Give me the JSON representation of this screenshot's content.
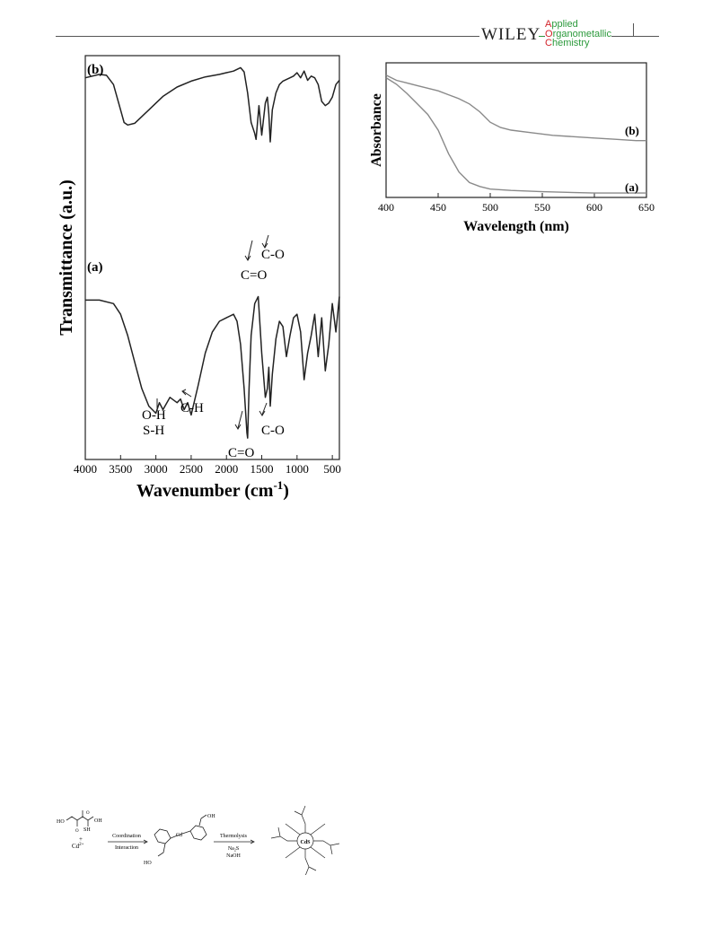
{
  "header": {
    "publisher": "WILEY",
    "journal_lines": [
      {
        "cap": "A",
        "rest": "pplied"
      },
      {
        "cap": "O",
        "rest": "rganometallic"
      },
      {
        "cap": "C",
        "rest": "hemistry"
      }
    ],
    "colors": {
      "journal_green": "#2c9a3c",
      "journal_red": "#d2232a"
    }
  },
  "ftir": {
    "ylabel": "Transmittance (a.u.)",
    "xlabel_main": "Wavenumber (cm",
    "xlabel_sup": "-1",
    "xlabel_close": ")",
    "ticks": [
      "4000",
      "3500",
      "3000",
      "2500",
      "2000",
      "1500",
      "1000",
      "500"
    ],
    "label_b": "(b)",
    "label_a": "(a)",
    "annotations": {
      "co_b": "C=O",
      "c_o_b": "C-O",
      "oh": "O-H",
      "sh": "S-H",
      "ch": "C-H",
      "co_a": "C=O",
      "c_o_a": "C-O"
    }
  },
  "uvvis": {
    "ylabel": "Absorbance",
    "xlabel": "Wavelength (nm)",
    "ticks": [
      "400",
      "450",
      "500",
      "550",
      "600",
      "650"
    ],
    "label_b": "(b)",
    "label_a": "(a)"
  },
  "chart_data": [
    {
      "type": "line",
      "title": "",
      "xlabel": "Wavenumber (cm-1)",
      "ylabel": "Transmittance (a.u.)",
      "xlim": [
        4000,
        400
      ],
      "xticks": [
        4000,
        3500,
        3000,
        2500,
        2000,
        1500,
        1000,
        500
      ],
      "series": [
        {
          "name": "(b)",
          "x": [
            4000,
            3800,
            3700,
            3600,
            3500,
            3450,
            3400,
            3300,
            3200,
            3100,
            3000,
            2900,
            2700,
            2500,
            2300,
            2100,
            2000,
            1900,
            1800,
            1750,
            1700,
            1650,
            1600,
            1580,
            1560,
            1540,
            1500,
            1450,
            1420,
            1400,
            1380,
            1350,
            1300,
            1250,
            1200,
            1150,
            1100,
            1050,
            1000,
            950,
            900,
            850,
            800,
            750,
            700,
            650,
            600,
            550,
            500,
            450,
            400
          ],
          "y": [
            78,
            82,
            81,
            70,
            40,
            25,
            22,
            24,
            32,
            40,
            48,
            56,
            67,
            74,
            79,
            82,
            84,
            86,
            90,
            85,
            60,
            25,
            12,
            5,
            25,
            45,
            10,
            48,
            55,
            35,
            2,
            40,
            60,
            70,
            74,
            76,
            78,
            80,
            84,
            78,
            86,
            75,
            80,
            78,
            70,
            50,
            45,
            48,
            55,
            70,
            75
          ]
        },
        {
          "name": "(a)",
          "x": [
            4000,
            3800,
            3600,
            3500,
            3400,
            3300,
            3200,
            3100,
            3000,
            2950,
            2900,
            2800,
            2700,
            2650,
            2600,
            2550,
            2500,
            2400,
            2300,
            2200,
            2100,
            2000,
            1900,
            1850,
            1800,
            1750,
            1710,
            1700,
            1680,
            1650,
            1600,
            1550,
            1500,
            1450,
            1420,
            1400,
            1380,
            1350,
            1300,
            1250,
            1200,
            1150,
            1100,
            1050,
            1000,
            950,
            900,
            850,
            800,
            750,
            700,
            650,
            600,
            550,
            500,
            450,
            400
          ],
          "y": [
            80,
            80,
            78,
            72,
            60,
            45,
            30,
            20,
            16,
            22,
            18,
            25,
            22,
            24,
            18,
            22,
            15,
            32,
            50,
            62,
            68,
            70,
            72,
            68,
            55,
            30,
            5,
            2,
            30,
            60,
            78,
            82,
            50,
            25,
            30,
            42,
            20,
            38,
            58,
            68,
            65,
            48,
            60,
            70,
            72,
            62,
            35,
            50,
            60,
            72,
            48,
            70,
            40,
            55,
            78,
            62,
            82
          ]
        }
      ]
    },
    {
      "type": "line",
      "title": "",
      "xlabel": "Wavelength (nm)",
      "ylabel": "Absorbance",
      "xlim": [
        400,
        650
      ],
      "xticks": [
        400,
        450,
        500,
        550,
        600,
        650
      ],
      "series": [
        {
          "name": "(b)",
          "x": [
            400,
            410,
            420,
            430,
            440,
            450,
            460,
            470,
            480,
            490,
            500,
            510,
            520,
            540,
            560,
            580,
            600,
            620,
            640,
            650
          ],
          "y": [
            0.92,
            0.88,
            0.86,
            0.84,
            0.82,
            0.8,
            0.77,
            0.74,
            0.7,
            0.64,
            0.56,
            0.52,
            0.5,
            0.48,
            0.46,
            0.45,
            0.44,
            0.43,
            0.42,
            0.42
          ]
        },
        {
          "name": "(a)",
          "x": [
            400,
            410,
            420,
            430,
            440,
            450,
            460,
            470,
            480,
            490,
            500,
            520,
            550,
            600,
            650
          ],
          "y": [
            0.9,
            0.85,
            0.78,
            0.7,
            0.62,
            0.5,
            0.32,
            0.18,
            0.1,
            0.07,
            0.05,
            0.04,
            0.03,
            0.02,
            0.02
          ]
        }
      ]
    }
  ],
  "scheme": {
    "reactant_acid": "HO",
    "reactant_acid2": "OH",
    "reactant_sh": "SH",
    "reactant_o1": "O",
    "reactant_o2": "O",
    "plus": "+",
    "cd_ion": "Cd",
    "cd_charge": "2+",
    "arrow1_top": "Coordination",
    "arrow1_bottom": "Interaction",
    "complex_oh_top": "OH",
    "complex_ho_bottom": "HO",
    "complex_cd": "Cd",
    "arrow2_top": "Thermolysis",
    "arrow2_mid": "Na",
    "arrow2_mid_sub": "2",
    "arrow2_mid_end": "S",
    "arrow2_bottom": "NaOH",
    "product_core": "CdS"
  }
}
